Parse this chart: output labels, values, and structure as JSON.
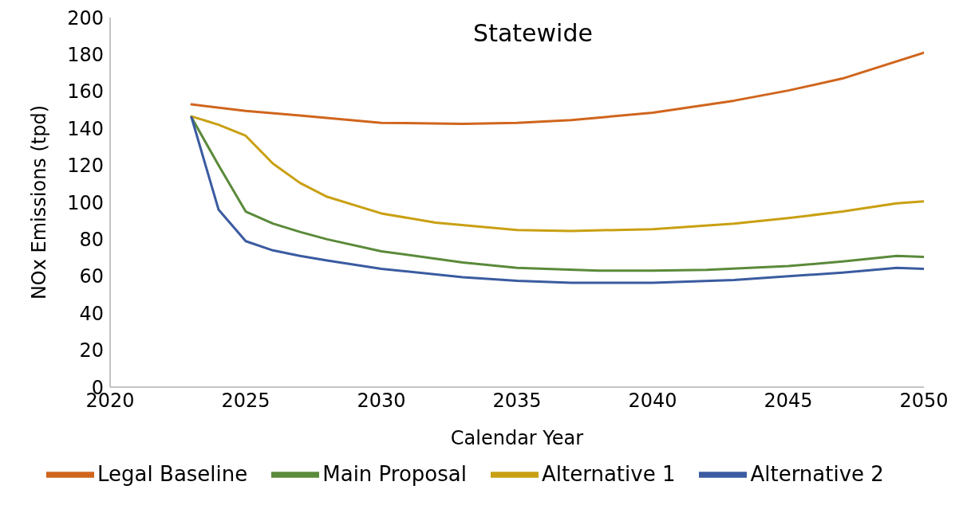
{
  "chart_data": {
    "type": "line",
    "title": "Statewide",
    "xlabel": "Calendar Year",
    "ylabel": "NOx Emissions (tpd)",
    "xlim": [
      2020,
      2050
    ],
    "xticks": [
      2020,
      2025,
      2030,
      2035,
      2040,
      2045,
      2050
    ],
    "ylim": [
      0,
      200
    ],
    "yticks": [
      0,
      20,
      40,
      60,
      80,
      100,
      120,
      140,
      160,
      180,
      200
    ],
    "grid": false,
    "legend": "bottom",
    "marker": "none",
    "line_style": "solid",
    "series": [
      {
        "name": "Legal Baseline",
        "color": "#d0651d",
        "x": [
          2023,
          2025,
          2027,
          2030,
          2033,
          2035,
          2037,
          2040,
          2043,
          2045,
          2047,
          2050
        ],
        "values": [
          153,
          149.5,
          147,
          143,
          142.5,
          143,
          144.5,
          148.5,
          155,
          160.5,
          167,
          181
        ]
      },
      {
        "name": "Main Proposal",
        "color": "#5a8a3a",
        "x": [
          2023,
          2024,
          2025,
          2026,
          2027,
          2028,
          2030,
          2033,
          2035,
          2038,
          2040,
          2042,
          2045,
          2047,
          2049,
          2050
        ],
        "values": [
          146,
          120,
          95,
          88.5,
          84,
          80,
          73.5,
          67.5,
          64.5,
          63,
          63,
          63.5,
          65.5,
          68,
          71,
          70.5
        ]
      },
      {
        "name": "Alternative 1",
        "color": "#c9a012",
        "x": [
          2023,
          2024,
          2025,
          2026,
          2027,
          2028,
          2030,
          2032,
          2035,
          2037,
          2040,
          2043,
          2045,
          2047,
          2049,
          2050
        ],
        "values": [
          146.5,
          142,
          136,
          121,
          110.5,
          103,
          94,
          89,
          85,
          84.5,
          85.5,
          88.5,
          91.5,
          95,
          99.5,
          100.5
        ]
      },
      {
        "name": "Alternative 2",
        "color": "#3a5ba0",
        "x": [
          2023,
          2024,
          2025,
          2026,
          2027,
          2028,
          2030,
          2033,
          2035,
          2037,
          2040,
          2043,
          2045,
          2047,
          2049,
          2050
        ],
        "values": [
          146,
          96,
          79,
          74,
          71,
          68.5,
          64,
          59.5,
          57.5,
          56.5,
          56.5,
          58,
          60,
          62,
          64.5,
          64
        ]
      }
    ]
  }
}
